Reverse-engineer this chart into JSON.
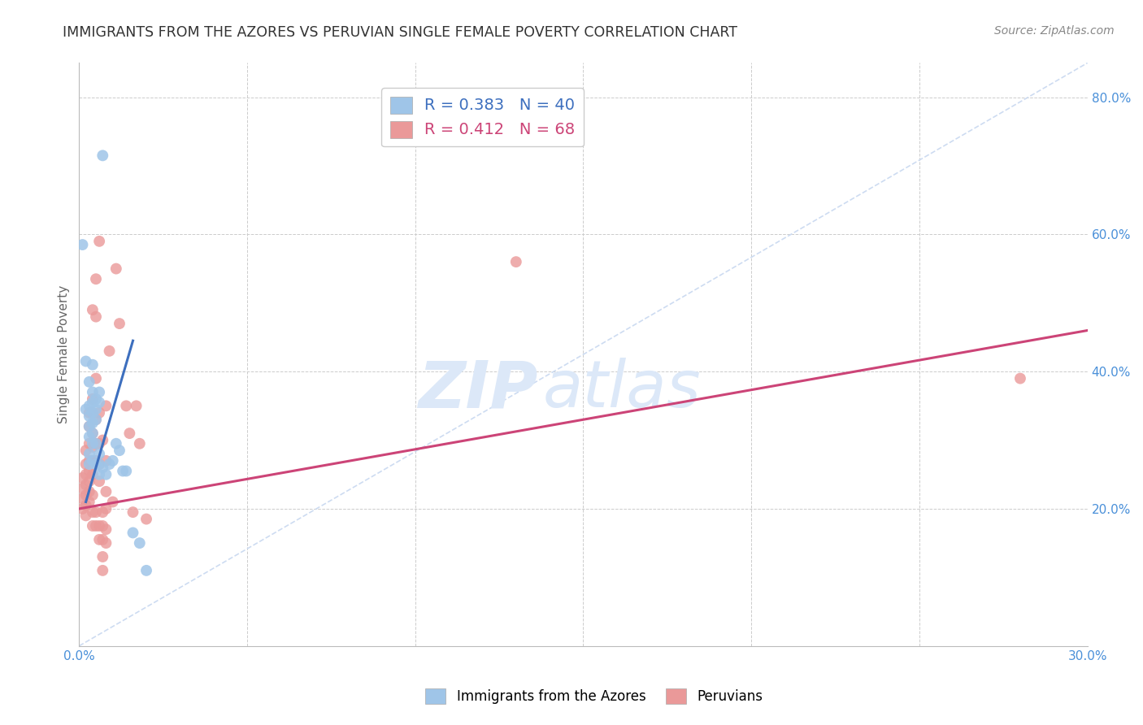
{
  "title": "IMMIGRANTS FROM THE AZORES VS PERUVIAN SINGLE FEMALE POVERTY CORRELATION CHART",
  "source": "Source: ZipAtlas.com",
  "ylabel": "Single Female Poverty",
  "xlim": [
    0.0,
    0.3
  ],
  "ylim": [
    0.0,
    0.85
  ],
  "xticks": [
    0.0,
    0.05,
    0.1,
    0.15,
    0.2,
    0.25,
    0.3
  ],
  "yticks": [
    0.0,
    0.2,
    0.4,
    0.6,
    0.8
  ],
  "xticklabels": [
    "0.0%",
    "",
    "",
    "",
    "",
    "",
    "30.0%"
  ],
  "yticklabels": [
    "",
    "20.0%",
    "40.0%",
    "60.0%",
    "80.0%"
  ],
  "legend1_label": "R = 0.383   N = 40",
  "legend2_label": "R = 0.412   N = 68",
  "watermark": "ZIPatlas",
  "blue_scatter": [
    [
      0.001,
      0.585
    ],
    [
      0.002,
      0.415
    ],
    [
      0.002,
      0.345
    ],
    [
      0.003,
      0.385
    ],
    [
      0.003,
      0.35
    ],
    [
      0.003,
      0.335
    ],
    [
      0.003,
      0.32
    ],
    [
      0.003,
      0.305
    ],
    [
      0.003,
      0.28
    ],
    [
      0.003,
      0.265
    ],
    [
      0.004,
      0.41
    ],
    [
      0.004,
      0.37
    ],
    [
      0.004,
      0.355
    ],
    [
      0.004,
      0.34
    ],
    [
      0.004,
      0.325
    ],
    [
      0.004,
      0.31
    ],
    [
      0.004,
      0.295
    ],
    [
      0.004,
      0.27
    ],
    [
      0.005,
      0.36
    ],
    [
      0.005,
      0.345
    ],
    [
      0.005,
      0.33
    ],
    [
      0.005,
      0.295
    ],
    [
      0.005,
      0.265
    ],
    [
      0.006,
      0.37
    ],
    [
      0.006,
      0.355
    ],
    [
      0.006,
      0.28
    ],
    [
      0.006,
      0.265
    ],
    [
      0.006,
      0.25
    ],
    [
      0.007,
      0.715
    ],
    [
      0.007,
      0.26
    ],
    [
      0.008,
      0.25
    ],
    [
      0.009,
      0.265
    ],
    [
      0.01,
      0.27
    ],
    [
      0.011,
      0.295
    ],
    [
      0.012,
      0.285
    ],
    [
      0.013,
      0.255
    ],
    [
      0.014,
      0.255
    ],
    [
      0.016,
      0.165
    ],
    [
      0.018,
      0.15
    ],
    [
      0.02,
      0.11
    ]
  ],
  "pink_scatter": [
    [
      0.001,
      0.245
    ],
    [
      0.001,
      0.23
    ],
    [
      0.001,
      0.215
    ],
    [
      0.001,
      0.2
    ],
    [
      0.002,
      0.285
    ],
    [
      0.002,
      0.265
    ],
    [
      0.002,
      0.25
    ],
    [
      0.002,
      0.235
    ],
    [
      0.002,
      0.22
    ],
    [
      0.002,
      0.205
    ],
    [
      0.002,
      0.19
    ],
    [
      0.003,
      0.34
    ],
    [
      0.003,
      0.32
    ],
    [
      0.003,
      0.295
    ],
    [
      0.003,
      0.27
    ],
    [
      0.003,
      0.255
    ],
    [
      0.003,
      0.24
    ],
    [
      0.003,
      0.225
    ],
    [
      0.003,
      0.21
    ],
    [
      0.004,
      0.49
    ],
    [
      0.004,
      0.36
    ],
    [
      0.004,
      0.34
    ],
    [
      0.004,
      0.31
    ],
    [
      0.004,
      0.29
    ],
    [
      0.004,
      0.27
    ],
    [
      0.004,
      0.25
    ],
    [
      0.004,
      0.22
    ],
    [
      0.004,
      0.195
    ],
    [
      0.004,
      0.175
    ],
    [
      0.005,
      0.535
    ],
    [
      0.005,
      0.48
    ],
    [
      0.005,
      0.39
    ],
    [
      0.005,
      0.33
    ],
    [
      0.005,
      0.295
    ],
    [
      0.005,
      0.27
    ],
    [
      0.005,
      0.195
    ],
    [
      0.005,
      0.175
    ],
    [
      0.006,
      0.59
    ],
    [
      0.006,
      0.34
    ],
    [
      0.006,
      0.295
    ],
    [
      0.006,
      0.265
    ],
    [
      0.006,
      0.24
    ],
    [
      0.006,
      0.175
    ],
    [
      0.006,
      0.155
    ],
    [
      0.007,
      0.3
    ],
    [
      0.007,
      0.195
    ],
    [
      0.007,
      0.175
    ],
    [
      0.007,
      0.155
    ],
    [
      0.007,
      0.13
    ],
    [
      0.007,
      0.11
    ],
    [
      0.008,
      0.35
    ],
    [
      0.008,
      0.27
    ],
    [
      0.008,
      0.225
    ],
    [
      0.008,
      0.2
    ],
    [
      0.008,
      0.17
    ],
    [
      0.008,
      0.15
    ],
    [
      0.009,
      0.43
    ],
    [
      0.01,
      0.21
    ],
    [
      0.011,
      0.55
    ],
    [
      0.012,
      0.47
    ],
    [
      0.014,
      0.35
    ],
    [
      0.015,
      0.31
    ],
    [
      0.016,
      0.195
    ],
    [
      0.017,
      0.35
    ],
    [
      0.018,
      0.295
    ],
    [
      0.02,
      0.185
    ],
    [
      0.13,
      0.56
    ],
    [
      0.28,
      0.39
    ]
  ],
  "blue_line_x": [
    0.002,
    0.016
  ],
  "blue_line_y": [
    0.21,
    0.445
  ],
  "pink_line_x": [
    0.0,
    0.3
  ],
  "pink_line_y": [
    0.2,
    0.46
  ],
  "diag_line_x": [
    0.0,
    0.3
  ],
  "diag_line_y": [
    0.0,
    0.85
  ],
  "blue_color": "#9fc5e8",
  "pink_color": "#ea9999",
  "blue_line_color": "#3d6fbe",
  "pink_line_color": "#cc4477",
  "diag_line_color": "#c8d8f0",
  "background_color": "#ffffff",
  "grid_color": "#cccccc",
  "title_color": "#333333",
  "axis_color": "#4a90d9",
  "source_color": "#888888"
}
